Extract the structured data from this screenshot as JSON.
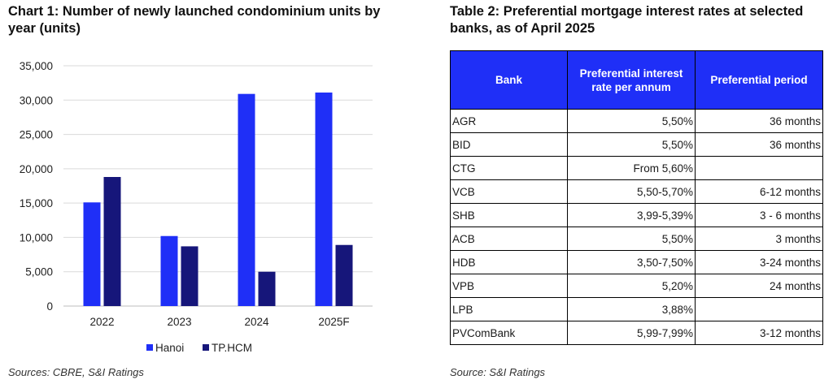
{
  "chart": {
    "title": "Chart 1: Number of newly launched condominium units by year (units)",
    "source": "Sources: CBRE, S&I Ratings"
  },
  "chart_data": {
    "type": "bar",
    "title": "Chart 1: Number of newly launched condominium units by year (units)",
    "categories": [
      "2022",
      "2023",
      "2024",
      "2025F"
    ],
    "series": [
      {
        "name": "Hanoi",
        "values": [
          15100,
          10200,
          30900,
          31100
        ],
        "color": "#1f2ff7"
      },
      {
        "name": "TP.HCM",
        "values": [
          18800,
          8700,
          5000,
          8900
        ],
        "color": "#16167a"
      }
    ],
    "ylim": [
      0,
      35000
    ],
    "yticks": [
      "0",
      "5,000",
      "10,000",
      "15,000",
      "20,000",
      "25,000",
      "30,000",
      "35,000"
    ],
    "grid": "horizontal",
    "legend": "bottom"
  },
  "table": {
    "title": "Table 2: Preferential mortgage interest rates at selected banks, as of April 2025",
    "header_color": "#1f2ff7",
    "headers": {
      "bank": "Bank",
      "rate": "Preferential interest rate per annum",
      "period": "Preferential period"
    },
    "rows": [
      {
        "bank": "AGR",
        "rate": "5,50%",
        "period": "36 months"
      },
      {
        "bank": "BID",
        "rate": "5,50%",
        "period": "36 months"
      },
      {
        "bank": "CTG",
        "rate": "From 5,60%",
        "period": ""
      },
      {
        "bank": "VCB",
        "rate": "5,50-5,70%",
        "period": "6-12 months"
      },
      {
        "bank": "SHB",
        "rate": "3,99-5,39%",
        "period": "3 - 6 months"
      },
      {
        "bank": "ACB",
        "rate": "5,50%",
        "period": "3 months"
      },
      {
        "bank": "HDB",
        "rate": "3,50-7,50%",
        "period": "3-24 months"
      },
      {
        "bank": "VPB",
        "rate": "5,20%",
        "period": "24 months"
      },
      {
        "bank": "LPB",
        "rate": "3,88%",
        "period": ""
      },
      {
        "bank": "PVComBank",
        "rate": "5,99-7,99%",
        "period": "3-12 months"
      }
    ],
    "source": "Source: S&I Ratings"
  }
}
